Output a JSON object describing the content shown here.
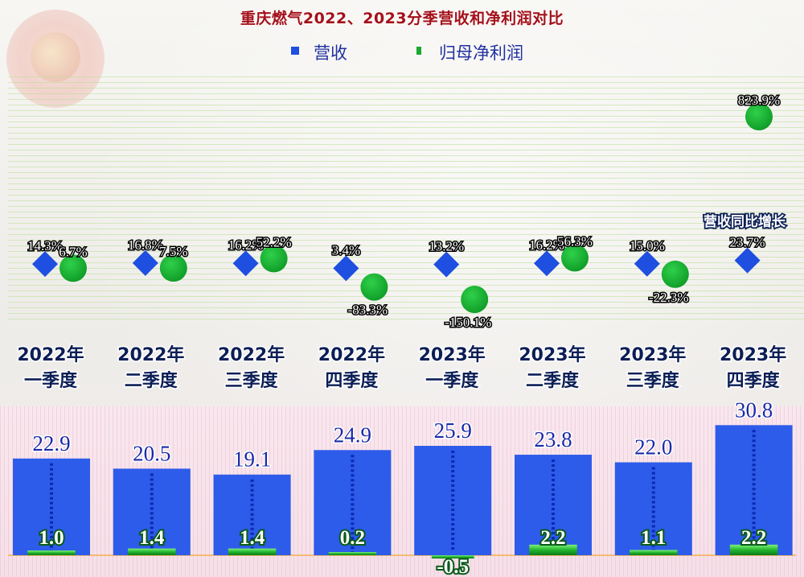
{
  "title": "重庆燃气2022、2023分季营收和净利润对比",
  "legend": {
    "revenue_label": "营收",
    "profit_label": "归母净利润",
    "revenue_color": "#1f4fe0",
    "profit_color": "#1aa830"
  },
  "callout": "营收同比增长",
  "colors": {
    "title": "#a4101a",
    "revenue_bar": "#2d5bea",
    "revenue_marker": "#1f4fe0",
    "profit_marker": "#1aa830",
    "profit_bar": "#22b52e"
  },
  "chart_data": {
    "type": "bar",
    "categories": [
      [
        "2022年",
        "一季度"
      ],
      [
        "2022年",
        "二季度"
      ],
      [
        "2022年",
        "三季度"
      ],
      [
        "2022年",
        "四季度"
      ],
      [
        "2023年",
        "一季度"
      ],
      [
        "2023年",
        "二季度"
      ],
      [
        "2023年",
        "三季度"
      ],
      [
        "2023年",
        "四季度"
      ]
    ],
    "series": [
      {
        "name": "营收",
        "values": [
          22.9,
          20.5,
          19.1,
          24.9,
          25.9,
          23.8,
          22.0,
          30.8
        ],
        "labels": [
          "22.9",
          "20.5",
          "19.1",
          "24.9",
          "25.9",
          "23.8",
          "22.0",
          "30.8"
        ]
      },
      {
        "name": "归母净利润",
        "values": [
          1.0,
          1.4,
          1.4,
          0.2,
          -0.5,
          2.2,
          1.1,
          2.2
        ],
        "labels": [
          "1.0",
          "1.4",
          "1.4",
          "0.2",
          "-0.5",
          "2.2",
          "1.1",
          "2.2"
        ]
      }
    ],
    "growth_series": [
      {
        "name": "营收",
        "values": [
          14.3,
          16.8,
          16.2,
          3.4,
          13.2,
          16.2,
          15.0,
          23.7
        ],
        "labels": [
          "14.3%",
          "16.8%",
          "16.2%",
          "3.4%",
          "13.2%",
          "16.2%",
          "15.0%",
          "23.7%"
        ]
      },
      {
        "name": "归母净利润",
        "values": [
          6.7,
          7.5,
          52.2,
          -83.3,
          -150.1,
          56.3,
          -22.3,
          823.9
        ],
        "labels": [
          "6.7%",
          "7.5%",
          "52.2%",
          "-83.3%",
          "-150.1%",
          "56.3%",
          "-22.3%",
          "823.9%"
        ]
      }
    ],
    "grid": true,
    "legend_position": "top-center"
  }
}
